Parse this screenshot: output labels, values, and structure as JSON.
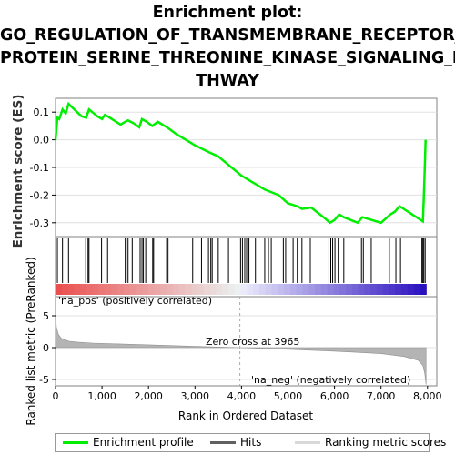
{
  "title_lines": [
    "Enrichment plot:",
    "GO_REGULATION_OF_TRANSMEMBRANE_RECEPTOR_",
    "PROTEIN_SERINE_THREONINE_KINASE_SIGNALING_PA",
    "THWAY"
  ],
  "colors": {
    "enrichment": "#00ee00",
    "hits": "#000000",
    "ranking": "#b4b4b4",
    "pos_text": "#e03030",
    "neg_text": "#3030c0",
    "grid": "#e0e0e0",
    "frame": "#808080"
  },
  "chart_data": [
    {
      "type": "line",
      "name": "enrichment-profile",
      "ylabel": "Enrichment score (ES)",
      "xlim": [
        0,
        8200
      ],
      "ylim": [
        -0.35,
        0.15
      ],
      "yticks": [
        0.1,
        0.0,
        -0.1,
        -0.2,
        -0.3
      ],
      "ytick_labels": [
        "0.1",
        "0.0",
        "-0.1",
        "-0.2",
        "-0.3"
      ],
      "grid": true,
      "x": [
        0,
        40,
        80,
        150,
        220,
        280,
        560,
        660,
        720,
        900,
        1000,
        1060,
        1120,
        1400,
        1500,
        1560,
        1680,
        1800,
        1860,
        1960,
        2080,
        2200,
        2300,
        2400,
        2600,
        3000,
        3300,
        3500,
        4000,
        4300,
        4500,
        4800,
        5000,
        5200,
        5300,
        5500,
        5800,
        5900,
        6000,
        6100,
        6200,
        6500,
        6600,
        6700,
        7000,
        7200,
        7300,
        7400,
        7900,
        7920,
        7940,
        7960
      ],
      "y": [
        0.0,
        0.08,
        0.075,
        0.11,
        0.095,
        0.13,
        0.085,
        0.08,
        0.11,
        0.085,
        0.075,
        0.09,
        0.085,
        0.055,
        0.065,
        0.07,
        0.06,
        0.045,
        0.075,
        0.065,
        0.05,
        0.065,
        0.055,
        0.045,
        0.02,
        -0.02,
        -0.045,
        -0.06,
        -0.13,
        -0.16,
        -0.18,
        -0.2,
        -0.23,
        -0.24,
        -0.25,
        -0.245,
        -0.285,
        -0.3,
        -0.29,
        -0.27,
        -0.28,
        -0.3,
        -0.28,
        -0.285,
        -0.3,
        -0.27,
        -0.26,
        -0.24,
        -0.295,
        -0.21,
        -0.11,
        0.0
      ]
    },
    {
      "type": "scatter",
      "name": "hits",
      "x": [
        40,
        150,
        280,
        650,
        700,
        720,
        990,
        1120,
        1500,
        1520,
        1560,
        1650,
        1820,
        1860,
        1890,
        1940,
        2090,
        2110,
        2390,
        2420,
        2950,
        3140,
        3290,
        3340,
        3370,
        3500,
        3720,
        3980,
        4020,
        4070,
        4110,
        4160,
        4300,
        4500,
        4580,
        4640,
        4900,
        4950,
        5110,
        5200,
        5300,
        5480,
        5880,
        5920,
        5960,
        6010,
        6080,
        6200,
        6580,
        6620,
        6790,
        7180,
        7320,
        7420,
        7880,
        7900,
        7920,
        7950
      ]
    },
    {
      "type": "area",
      "name": "ranked-list-metric",
      "xlabel": "Rank in Ordered Dataset",
      "ylabel": "Ranked list metric (PreRanked)",
      "xlim": [
        0,
        8200
      ],
      "ylim": [
        -6,
        8
      ],
      "xticks": [
        0,
        1000,
        2000,
        3000,
        4000,
        5000,
        6000,
        7000,
        8000
      ],
      "xtick_labels": [
        "0",
        "1,000",
        "2,000",
        "3,000",
        "4,000",
        "5,000",
        "6,000",
        "7,000",
        "8,000"
      ],
      "yticks": [
        5,
        0,
        -5
      ],
      "ytick_labels": [
        "5",
        "0",
        "-5"
      ],
      "x": [
        0,
        20,
        60,
        120,
        200,
        300,
        500,
        800,
        1200,
        2000,
        3000,
        3965,
        5000,
        6000,
        7000,
        7500,
        7800,
        7900,
        7940,
        7970
      ],
      "y": [
        5.5,
        3.2,
        2.1,
        1.5,
        1.2,
        1.0,
        0.85,
        0.72,
        0.62,
        0.45,
        0.2,
        0.0,
        -0.25,
        -0.55,
        -0.95,
        -1.4,
        -2.0,
        -2.8,
        -4.0,
        -5.8
      ],
      "annotations": {
        "zero_cross": "Zero cross at 3965",
        "pos_label": "'na_pos' (positively correlated)",
        "neg_label": "'na_neg' (negatively correlated)"
      }
    }
  ],
  "legend": {
    "enrichment": "Enrichment profile",
    "hits": "Hits",
    "ranking": "Ranking metric scores"
  }
}
